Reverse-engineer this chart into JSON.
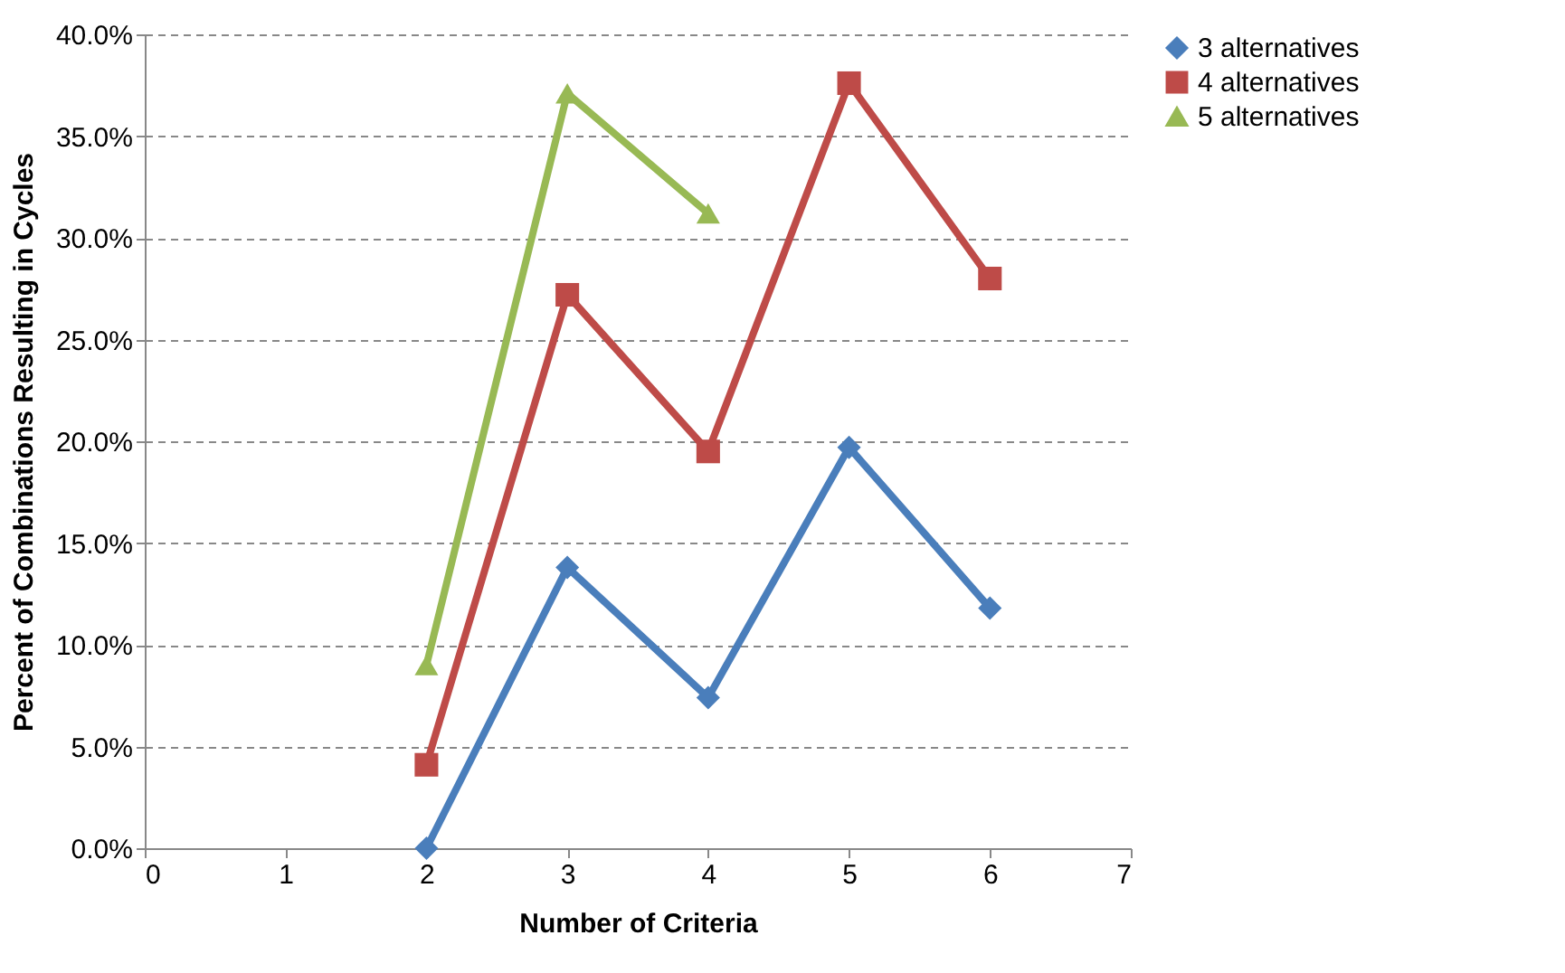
{
  "chart_data": {
    "type": "line",
    "xlabel": "Number of Criteria",
    "ylabel": "Percent of Combinations Resulting in Cycles",
    "xlim": [
      0,
      7
    ],
    "xticks": [
      0,
      1,
      2,
      3,
      4,
      5,
      6,
      7
    ],
    "ylim": [
      0,
      40
    ],
    "yticks": [
      {
        "value": 0,
        "label": "0.0%"
      },
      {
        "value": 5,
        "label": "5.0%"
      },
      {
        "value": 10,
        "label": "10.0%"
      },
      {
        "value": 15,
        "label": "15.0%"
      },
      {
        "value": 20,
        "label": "20.0%"
      },
      {
        "value": 25,
        "label": "25.0%"
      },
      {
        "value": 30,
        "label": "30.0%"
      },
      {
        "value": 35,
        "label": "35.0%"
      },
      {
        "value": 40,
        "label": "40.0%"
      }
    ],
    "grid": "y",
    "legend": "right",
    "line_style": "solid",
    "series": [
      {
        "name": "3 alternatives",
        "color": "#4a7ebb",
        "marker": "diamond",
        "x": [
          2,
          3,
          4,
          5,
          6
        ],
        "values": [
          0.0,
          13.8,
          7.4,
          19.7,
          11.8
        ]
      },
      {
        "name": "4 alternatives",
        "color": "#be4b48",
        "marker": "square",
        "x": [
          2,
          3,
          4,
          5,
          6
        ],
        "values": [
          4.1,
          27.2,
          19.5,
          37.6,
          28.0
        ]
      },
      {
        "name": "5 alternatives",
        "color": "#98b954",
        "marker": "triangle",
        "x": [
          2,
          3,
          4
        ],
        "values": [
          9.0,
          37.1,
          31.2
        ]
      }
    ]
  }
}
